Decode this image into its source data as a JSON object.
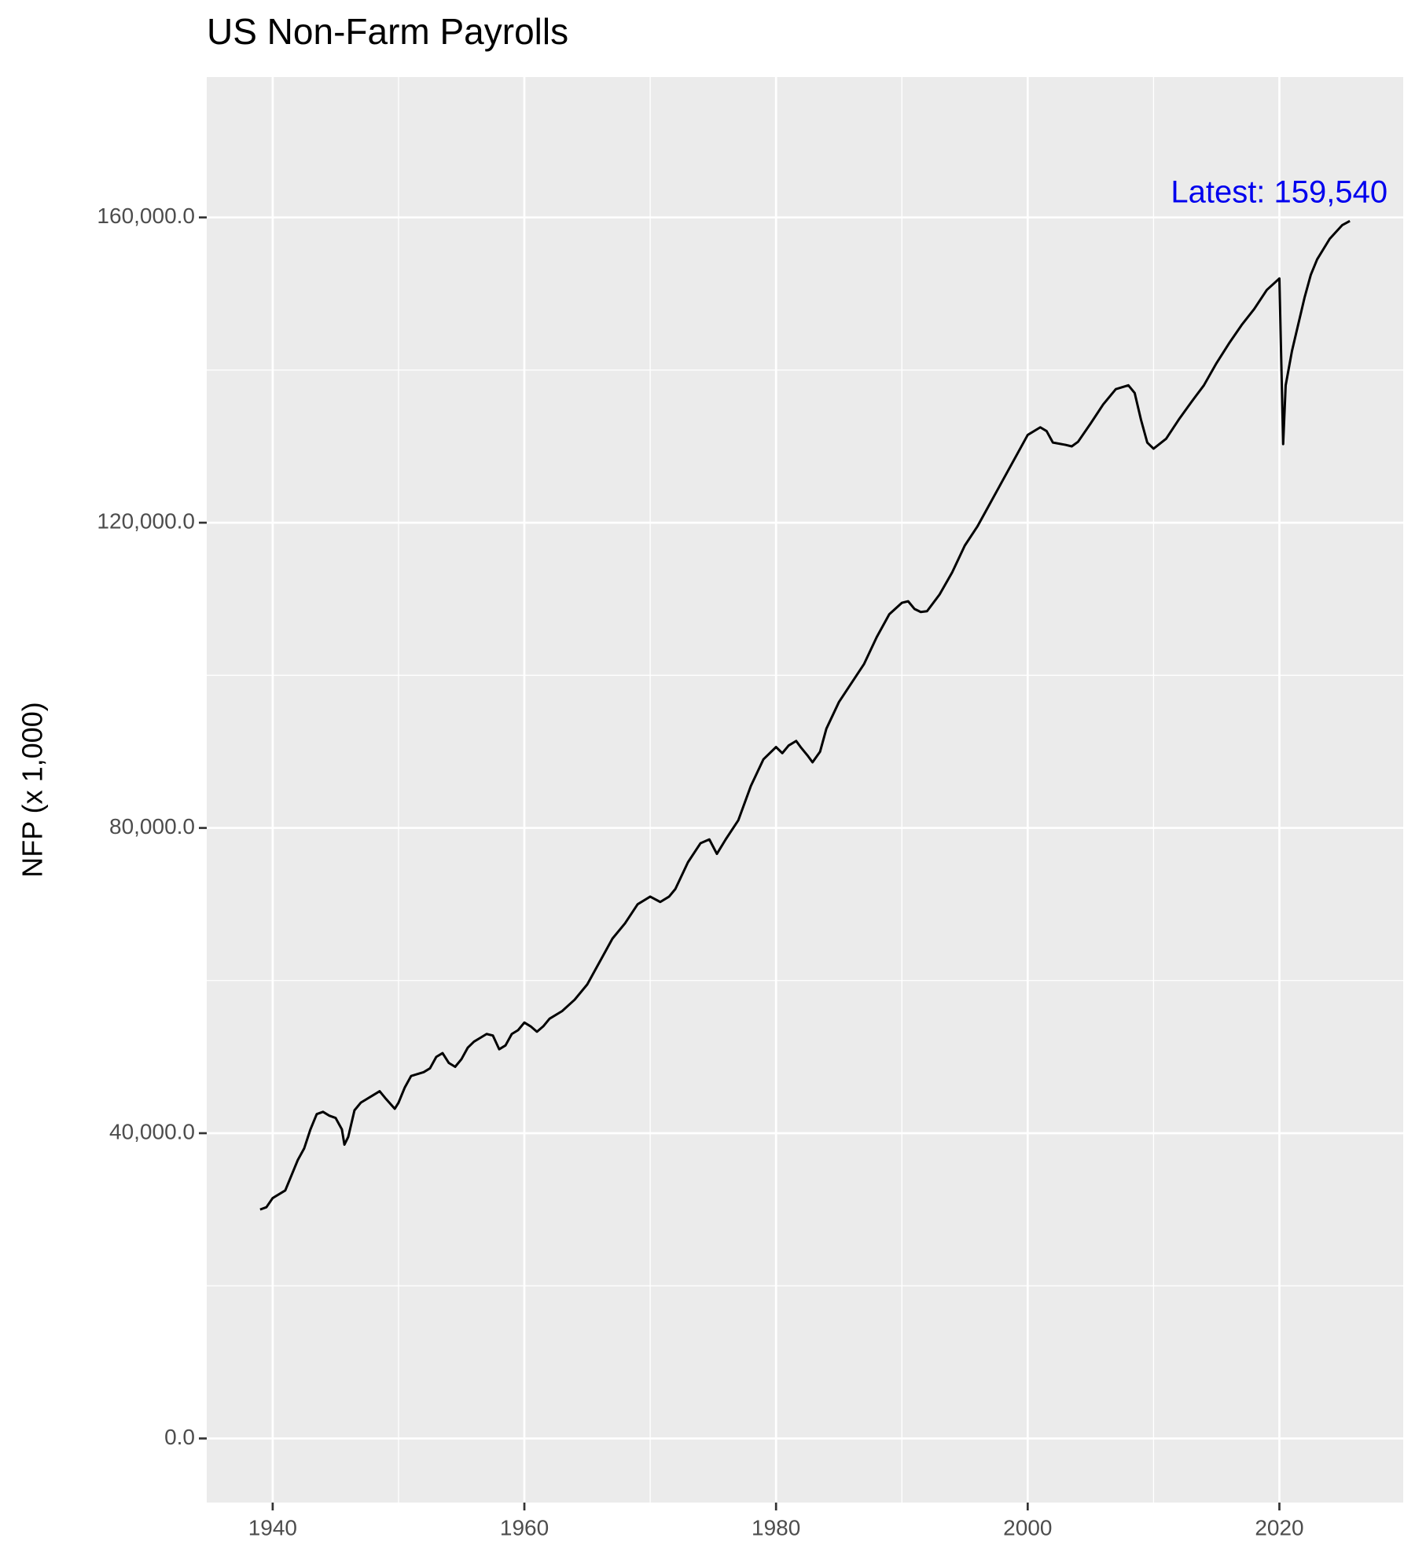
{
  "chart_data": {
    "type": "line",
    "title": "US Non-Farm Payrolls",
    "y_label": "NFP (x 1,000)",
    "annotation": "Latest: 159,540",
    "annotation_color": "#0000ee",
    "color": "#000000",
    "grid": true,
    "xlim": [
      1934.76,
      2029.84
    ],
    "xticks": [
      1940,
      1960,
      1980,
      2000,
      2020
    ],
    "xticks_minor": [
      1950,
      1970,
      1990,
      2010
    ],
    "ylim": [
      -8400,
      178400
    ],
    "yticks": [
      {
        "value": 0,
        "label": "0.0"
      },
      {
        "value": 40000,
        "label": "40,000.0"
      },
      {
        "value": 80000,
        "label": "80,000.0"
      },
      {
        "value": 120000,
        "label": "120,000.0"
      },
      {
        "value": 160000,
        "label": "160,000.0"
      }
    ],
    "yticks_minor": [
      20000,
      60000,
      100000,
      140000
    ],
    "x": [
      1939.0,
      1939.5,
      1940.0,
      1941.0,
      1942.0,
      1942.5,
      1943.0,
      1943.5,
      1944.0,
      1944.5,
      1945.0,
      1945.5,
      1945.7,
      1946.0,
      1946.5,
      1947.0,
      1948.0,
      1948.5,
      1949.0,
      1949.7,
      1950.0,
      1950.5,
      1951.0,
      1952.0,
      1952.5,
      1953.0,
      1953.5,
      1954.0,
      1954.5,
      1955.0,
      1955.5,
      1956.0,
      1956.5,
      1957.0,
      1957.5,
      1958.0,
      1958.5,
      1959.0,
      1959.5,
      1960.0,
      1960.5,
      1961.0,
      1961.5,
      1962.0,
      1963.0,
      1964.0,
      1965.0,
      1966.0,
      1967.0,
      1968.0,
      1969.0,
      1970.0,
      1970.8,
      1971.5,
      1972.0,
      1973.0,
      1974.0,
      1974.7,
      1975.3,
      1976.0,
      1977.0,
      1978.0,
      1979.0,
      1980.0,
      1980.5,
      1981.0,
      1981.6,
      1982.0,
      1982.5,
      1982.9,
      1983.5,
      1984.0,
      1985.0,
      1986.0,
      1987.0,
      1988.0,
      1989.0,
      1990.0,
      1990.5,
      1991.0,
      1991.5,
      1992.0,
      1993.0,
      1994.0,
      1995.0,
      1996.0,
      1997.0,
      1998.0,
      1999.0,
      2000.0,
      2001.0,
      2001.5,
      2002.0,
      2003.0,
      2003.5,
      2004.0,
      2005.0,
      2006.0,
      2007.0,
      2008.0,
      2008.5,
      2009.0,
      2009.5,
      2010.0,
      2011.0,
      2012.0,
      2013.0,
      2014.0,
      2015.0,
      2016.0,
      2017.0,
      2018.0,
      2019.0,
      2020.0,
      2020.3,
      2020.5,
      2021.0,
      2021.5,
      2022.0,
      2022.5,
      2023.0,
      2024.0,
      2025.0,
      2025.6
    ],
    "values": [
      30000,
      30300,
      31500,
      32500,
      36500,
      38000,
      40500,
      42500,
      42800,
      42300,
      42000,
      40500,
      38500,
      39500,
      43000,
      44000,
      45000,
      45500,
      44500,
      43200,
      44000,
      46000,
      47500,
      48000,
      48500,
      50000,
      50500,
      49200,
      48700,
      49700,
      51200,
      52000,
      52500,
      53000,
      52800,
      51000,
      51500,
      53000,
      53500,
      54500,
      54000,
      53300,
      54000,
      55000,
      56000,
      57500,
      59500,
      62500,
      65500,
      67500,
      70000,
      71000,
      70300,
      71000,
      72000,
      75500,
      78000,
      78500,
      76600,
      78500,
      81000,
      85500,
      89000,
      90600,
      89800,
      90800,
      91400,
      90500,
      89500,
      88600,
      90000,
      93000,
      96500,
      99000,
      101500,
      105000,
      108000,
      109500,
      109700,
      108700,
      108300,
      108400,
      110600,
      113500,
      117000,
      119500,
      122500,
      125500,
      128500,
      131500,
      132500,
      132000,
      130500,
      130200,
      130000,
      130600,
      133000,
      135500,
      137500,
      138000,
      137000,
      133500,
      130500,
      129700,
      131000,
      133500,
      135800,
      138000,
      140900,
      143500,
      145900,
      148000,
      150500,
      152000,
      130300,
      138000,
      142500,
      146000,
      149500,
      152500,
      154500,
      157200,
      159000,
      159540
    ]
  }
}
